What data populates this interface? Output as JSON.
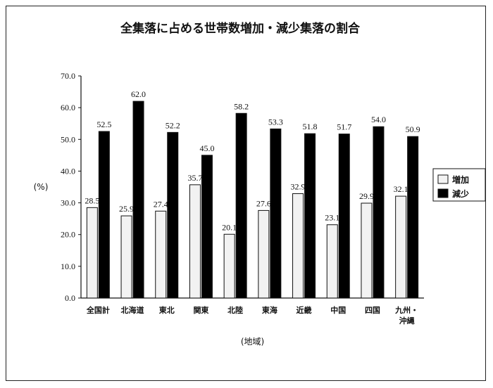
{
  "chart_data": {
    "type": "bar",
    "title": "全集落に占める世帯数増加・減少集落の割合",
    "ylabel": "(%)",
    "xlabel": "(地域)",
    "ylim": [
      0,
      70
    ],
    "yticks": [
      "0.0",
      "10.0",
      "20.0",
      "30.0",
      "40.0",
      "50.0",
      "60.0",
      "70.0"
    ],
    "categories": [
      "全国計",
      "北海道",
      "東北",
      "関東",
      "北陸",
      "東海",
      "近畿",
      "中国",
      "四国",
      "九州・沖縄"
    ],
    "category_lines": [
      [
        "全国計"
      ],
      [
        "北海道"
      ],
      [
        "東北"
      ],
      [
        "関東"
      ],
      [
        "北陸"
      ],
      [
        "東海"
      ],
      [
        "近畿"
      ],
      [
        "中国"
      ],
      [
        "四国"
      ],
      [
        "九州・",
        "沖縄"
      ]
    ],
    "series": [
      {
        "name": "増加",
        "color": "#f2f2f2",
        "values": [
          28.5,
          25.9,
          27.4,
          35.7,
          20.1,
          27.6,
          32.9,
          23.1,
          29.9,
          32.1
        ]
      },
      {
        "name": "減少",
        "color": "#000000",
        "values": [
          52.5,
          62.0,
          52.2,
          45.0,
          58.2,
          53.3,
          51.8,
          51.7,
          54.0,
          50.9
        ]
      }
    ],
    "legend_position": "right",
    "grid": false
  }
}
